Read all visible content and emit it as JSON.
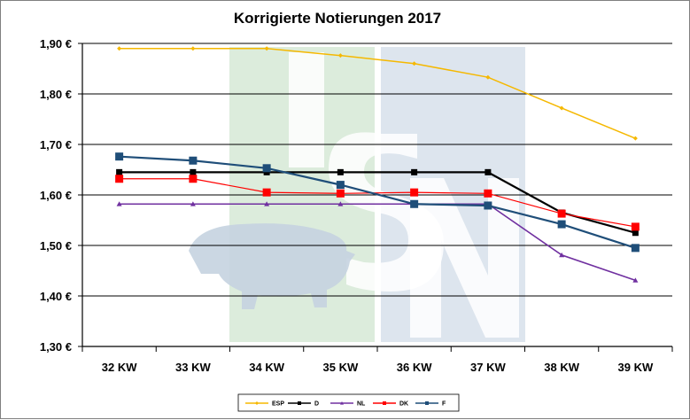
{
  "chart_data": {
    "type": "line",
    "title": "Korrigierte Notierungen 2017",
    "xlabel": "",
    "ylabel": "",
    "categories": [
      "32 KW",
      "33 KW",
      "34 KW",
      "35 KW",
      "36 KW",
      "37 KW",
      "38 KW",
      "39 KW"
    ],
    "ylim": [
      1.3,
      1.9
    ],
    "yticks": [
      1.3,
      1.4,
      1.5,
      1.6,
      1.7,
      1.8,
      1.9
    ],
    "ytick_labels": [
      "1,30 €",
      "1,40 €",
      "1,50 €",
      "1,60 €",
      "1,70 €",
      "1,80 €",
      "1,90 €"
    ],
    "grid": true,
    "legend_position": "bottom",
    "watermark": "ISN",
    "series": [
      {
        "name": "ESP",
        "color": "#f5b800",
        "marker": "diamond",
        "values": [
          1.89,
          1.89,
          1.89,
          1.876,
          1.86,
          1.833,
          1.772,
          1.712
        ]
      },
      {
        "name": "D",
        "color": "#000000",
        "marker": "square",
        "values": [
          1.645,
          1.645,
          1.645,
          1.645,
          1.645,
          1.645,
          1.565,
          1.525
        ]
      },
      {
        "name": "NL",
        "color": "#7030a0",
        "marker": "triangle",
        "values": [
          1.582,
          1.582,
          1.582,
          1.582,
          1.582,
          1.582,
          1.481,
          1.431
        ]
      },
      {
        "name": "DK",
        "color": "#ff0000",
        "marker": "square",
        "values": [
          1.632,
          1.632,
          1.605,
          1.603,
          1.605,
          1.603,
          1.563,
          1.537
        ]
      },
      {
        "name": "F",
        "color": "#1f4e79",
        "marker": "square",
        "values": [
          1.676,
          1.668,
          1.653,
          1.62,
          1.582,
          1.579,
          1.542,
          1.495
        ]
      }
    ]
  }
}
